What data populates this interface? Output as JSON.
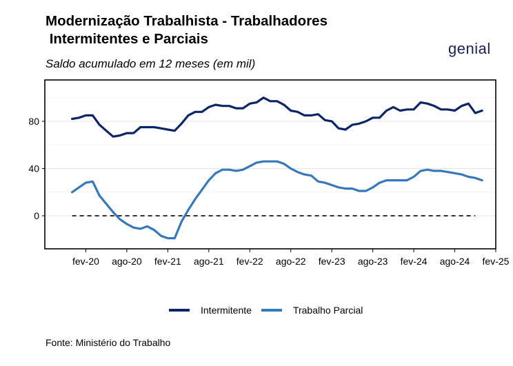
{
  "title_lines": [
    "Modernização Trabalhista - Trabalhadores",
    " Intermitentes e Parciais"
  ],
  "subtitle": "Saldo acumulado em 12 meses (em mil)",
  "logo_text": "genial",
  "source": "Fonte: Ministério do Trabalho",
  "chart_data": {
    "type": "line",
    "title": "Modernização Trabalhista - Trabalhadores Intermitentes e Parciais",
    "subtitle": "Saldo acumulado em 12 meses (em mil)",
    "xlabel": "",
    "ylabel": "",
    "x_start": "2019-12",
    "x_end": "2024-11",
    "xlim": [
      "2019-08",
      "2025-02"
    ],
    "ylim": [
      -28,
      115
    ],
    "x_ticks": [
      "fev-20",
      "ago-20",
      "fev-21",
      "ago-21",
      "fev-22",
      "ago-22",
      "fev-23",
      "ago-23",
      "fev-24",
      "ago-24",
      "fev-25"
    ],
    "y_ticks": [
      0,
      40,
      80
    ],
    "grid": true,
    "reference_line": {
      "y": 0,
      "style": "dashed"
    },
    "legend_position": "bottom",
    "series": [
      {
        "name": "Intermitente",
        "color": "#0c2566",
        "values": [
          82,
          83,
          85,
          85,
          77,
          72,
          67,
          68,
          70,
          70,
          75,
          75,
          75,
          74,
          73,
          72,
          78,
          85,
          88,
          88,
          92,
          94,
          93,
          93,
          91,
          91,
          95,
          96,
          100,
          97,
          97,
          94,
          89,
          88,
          85,
          85,
          86,
          81,
          80,
          74,
          73,
          77,
          78,
          80,
          83,
          83,
          89,
          92,
          89,
          90,
          90,
          96,
          95,
          93,
          90,
          90,
          89,
          93,
          95,
          87,
          89
        ]
      },
      {
        "name": "Trabalho Parcial",
        "color": "#3578bc",
        "values": [
          20,
          24,
          28,
          29,
          17,
          10,
          3,
          -3,
          -7,
          -10,
          -11,
          -9,
          -12,
          -17,
          -19,
          -19,
          -5,
          5,
          14,
          22,
          30,
          36,
          39,
          39,
          38,
          39,
          42,
          45,
          46,
          46,
          46,
          44,
          40,
          37,
          35,
          34,
          29,
          28,
          26,
          24,
          23,
          23,
          21,
          21,
          24,
          28,
          30,
          30,
          30,
          30,
          33,
          38,
          39,
          38,
          38,
          37,
          36,
          35,
          33,
          32,
          30
        ]
      }
    ]
  }
}
